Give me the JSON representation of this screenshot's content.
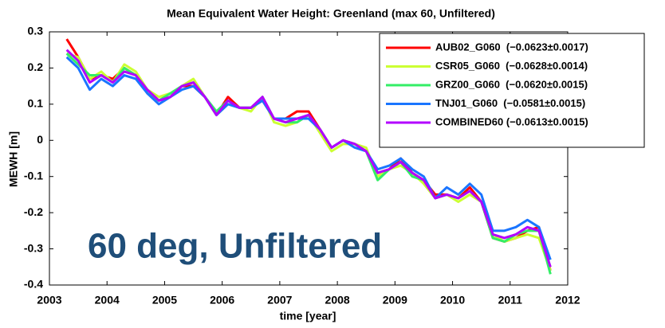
{
  "chart_data": {
    "type": "line",
    "title": "Mean Equivalent Water Height: Greenland (max 60, Unfiltered)",
    "x_label": "time [year]",
    "y_label": "MEWH [m]",
    "annotation": "60 deg, Unfiltered",
    "xlim": [
      2003,
      2012
    ],
    "xticks": [
      2003,
      2004,
      2005,
      2006,
      2007,
      2008,
      2009,
      2010,
      2011,
      2012
    ],
    "ylim": [
      -0.4,
      0.3
    ],
    "yticks": [
      0.3,
      0.2,
      0.1,
      0,
      -0.1,
      -0.2,
      -0.3,
      -0.4
    ],
    "grid": false,
    "legend": "upper right",
    "x": [
      2003.3,
      2003.5,
      2003.7,
      2003.9,
      2004.1,
      2004.3,
      2004.5,
      2004.7,
      2004.9,
      2005.1,
      2005.3,
      2005.5,
      2005.7,
      2005.9,
      2006.1,
      2006.3,
      2006.5,
      2006.7,
      2006.9,
      2007.1,
      2007.3,
      2007.5,
      2007.7,
      2007.9,
      2008.1,
      2008.3,
      2008.5,
      2008.7,
      2008.9,
      2009.1,
      2009.3,
      2009.5,
      2009.7,
      2009.9,
      2010.1,
      2010.3,
      2010.5,
      2010.7,
      2010.9,
      2011.1,
      2011.3,
      2011.5,
      2011.7
    ],
    "series": [
      {
        "name": "AUB02_G060  (−0.0623±0.0017)",
        "color": "#ff0000",
        "values": [
          0.28,
          0.23,
          0.17,
          0.18,
          0.17,
          0.2,
          0.18,
          0.14,
          0.11,
          0.12,
          0.15,
          0.15,
          0.12,
          0.07,
          0.12,
          0.09,
          0.09,
          0.11,
          0.06,
          0.06,
          0.08,
          0.08,
          0.03,
          -0.02,
          0.0,
          -0.01,
          -0.03,
          -0.09,
          -0.08,
          -0.05,
          -0.09,
          -0.11,
          -0.15,
          -0.15,
          -0.16,
          -0.13,
          -0.17,
          -0.27,
          -0.28,
          -0.27,
          -0.25,
          -0.24,
          -0.36
        ]
      },
      {
        "name": "CSR05_G060  (−0.0628±0.0014)",
        "color": "#ccff33",
        "values": [
          0.24,
          0.23,
          0.17,
          0.19,
          0.16,
          0.21,
          0.19,
          0.14,
          0.12,
          0.13,
          0.15,
          0.17,
          0.12,
          0.07,
          0.1,
          0.09,
          0.08,
          0.12,
          0.05,
          0.04,
          0.05,
          0.07,
          0.02,
          -0.03,
          -0.01,
          -0.01,
          -0.02,
          -0.1,
          -0.08,
          -0.07,
          -0.09,
          -0.12,
          -0.16,
          -0.15,
          -0.17,
          -0.15,
          -0.17,
          -0.26,
          -0.28,
          -0.27,
          -0.26,
          -0.27,
          -0.36
        ]
      },
      {
        "name": "GRZ00_G060  (−0.0620±0.0015)",
        "color": "#33ee66",
        "values": [
          0.24,
          0.21,
          0.18,
          0.18,
          0.16,
          0.2,
          0.18,
          0.13,
          0.11,
          0.13,
          0.15,
          0.16,
          0.12,
          0.08,
          0.11,
          0.09,
          0.09,
          0.12,
          0.06,
          0.05,
          0.05,
          0.07,
          0.03,
          -0.02,
          0.0,
          -0.01,
          -0.03,
          -0.11,
          -0.08,
          -0.06,
          -0.1,
          -0.11,
          -0.16,
          -0.15,
          -0.16,
          -0.14,
          -0.17,
          -0.27,
          -0.28,
          -0.26,
          -0.25,
          -0.25,
          -0.37
        ]
      },
      {
        "name": "TNJ01_G060  (−0.0581±0.0015)",
        "color": "#1a75ff",
        "values": [
          0.23,
          0.2,
          0.14,
          0.17,
          0.15,
          0.18,
          0.17,
          0.13,
          0.1,
          0.12,
          0.14,
          0.15,
          0.12,
          0.07,
          0.1,
          0.09,
          0.09,
          0.11,
          0.06,
          0.06,
          0.06,
          0.06,
          0.03,
          -0.02,
          0.0,
          -0.02,
          -0.03,
          -0.08,
          -0.07,
          -0.05,
          -0.08,
          -0.1,
          -0.16,
          -0.13,
          -0.15,
          -0.12,
          -0.15,
          -0.25,
          -0.25,
          -0.24,
          -0.22,
          -0.24,
          -0.33
        ]
      },
      {
        "name": "COMBINED60 (−0.0613±0.0015)",
        "color": "#b300ff",
        "values": [
          0.25,
          0.22,
          0.16,
          0.18,
          0.16,
          0.19,
          0.18,
          0.14,
          0.11,
          0.12,
          0.15,
          0.16,
          0.12,
          0.07,
          0.11,
          0.09,
          0.09,
          0.12,
          0.06,
          0.05,
          0.06,
          0.07,
          0.03,
          -0.02,
          0.0,
          -0.01,
          -0.03,
          -0.09,
          -0.08,
          -0.06,
          -0.09,
          -0.11,
          -0.16,
          -0.15,
          -0.16,
          -0.14,
          -0.17,
          -0.26,
          -0.27,
          -0.26,
          -0.24,
          -0.25,
          -0.35
        ]
      }
    ]
  }
}
